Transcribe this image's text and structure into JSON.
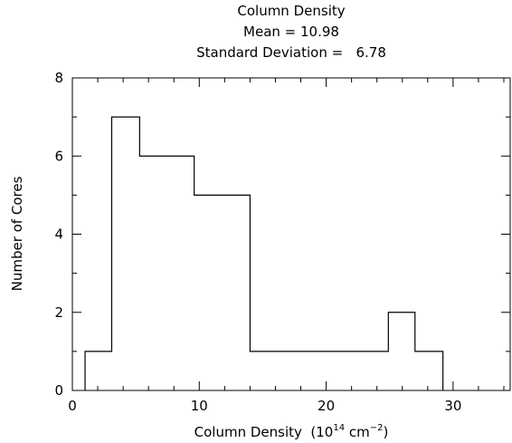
{
  "chart_data": {
    "type": "bar",
    "title_lines": [
      "Column Density",
      "Mean = 10.98",
      "Standard Deviation =   6.78"
    ],
    "xlabel": {
      "prefix": "Column Density  (10",
      "exponent1": "14",
      "middle": " cm",
      "exponent2": "−2",
      "suffix": ")"
    },
    "ylabel": "Number of Cores",
    "xlim": [
      0,
      34.5
    ],
    "ylim": [
      0,
      8
    ],
    "x_tick_labels": [
      {
        "value": 0,
        "label": "0"
      },
      {
        "value": 10,
        "label": "10"
      },
      {
        "value": 20,
        "label": "20"
      },
      {
        "value": 30,
        "label": "30"
      }
    ],
    "y_tick_labels": [
      {
        "value": 0,
        "label": "0"
      },
      {
        "value": 2,
        "label": "2"
      },
      {
        "value": 4,
        "label": "4"
      },
      {
        "value": 6,
        "label": "6"
      },
      {
        "value": 8,
        "label": "8"
      }
    ],
    "x_minor_step": 2,
    "y_minor_step": 1,
    "bin_edges": [
      1.0,
      3.1,
      5.3,
      7.5,
      9.6,
      11.8,
      14.0,
      16.1,
      18.3,
      20.5,
      22.7,
      24.9,
      27.0,
      29.2
    ],
    "counts": [
      1,
      7,
      6,
      6,
      5,
      5,
      1,
      1,
      1,
      1,
      1,
      2,
      1
    ],
    "grid": false,
    "legend": "none",
    "line_color": "#000000"
  }
}
